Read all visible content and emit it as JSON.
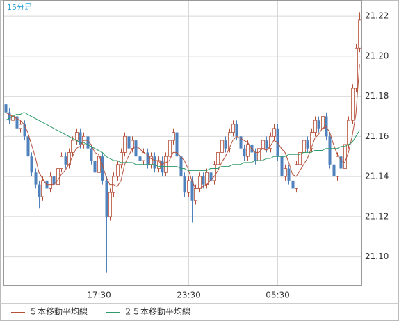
{
  "chart_data": {
    "type": "candlestick",
    "title": "15分足",
    "categories": [
      null,
      null,
      null,
      null,
      null,
      null,
      null,
      null,
      null,
      null,
      null,
      null,
      null,
      null,
      null,
      null,
      null,
      null,
      null,
      null,
      null,
      null,
      null,
      null,
      null,
      "17:30",
      null,
      null,
      null,
      null,
      null,
      null,
      null,
      null,
      null,
      null,
      null,
      null,
      null,
      null,
      null,
      null,
      null,
      null,
      null,
      null,
      null,
      null,
      null,
      "23:30",
      null,
      null,
      null,
      null,
      null,
      null,
      null,
      null,
      null,
      null,
      null,
      null,
      null,
      null,
      null,
      null,
      null,
      null,
      null,
      null,
      null,
      null,
      null,
      "05:30",
      null,
      null,
      null,
      null,
      null,
      null,
      null,
      null,
      null,
      null,
      null,
      null,
      null,
      null,
      null,
      null,
      null,
      null,
      null,
      null,
      null,
      null
    ],
    "open": [
      21.176,
      21.172,
      21.168,
      21.17,
      21.164,
      21.166,
      21.16,
      21.15,
      21.142,
      21.136,
      21.13,
      21.138,
      21.134,
      21.14,
      21.136,
      21.144,
      21.15,
      21.146,
      21.152,
      21.158,
      21.162,
      21.156,
      21.16,
      21.154,
      21.148,
      21.142,
      21.15,
      21.138,
      21.12,
      21.132,
      21.14,
      21.146,
      21.152,
      21.16,
      21.154,
      21.158,
      21.15,
      21.148,
      21.152,
      21.146,
      21.15,
      21.144,
      21.148,
      21.142,
      21.15,
      21.158,
      21.162,
      21.15,
      21.14,
      21.132,
      21.138,
      21.128,
      21.134,
      21.14,
      21.136,
      21.142,
      21.138,
      21.146,
      21.152,
      21.158,
      21.154,
      21.162,
      21.166,
      21.16,
      21.154,
      21.15,
      21.156,
      21.152,
      21.148,
      21.154,
      21.158,
      21.154,
      21.16,
      21.164,
      21.15,
      21.14,
      21.144,
      21.138,
      21.134,
      21.146,
      21.152,
      21.158,
      21.154,
      21.162,
      21.168,
      21.164,
      21.17,
      21.16,
      21.146,
      21.14,
      21.15,
      21.144,
      21.156,
      21.168,
      21.184,
      21.204
    ],
    "high": [
      21.178,
      21.174,
      21.172,
      21.172,
      21.168,
      21.168,
      21.162,
      21.152,
      21.144,
      21.138,
      21.14,
      21.14,
      21.142,
      21.142,
      21.146,
      21.152,
      21.152,
      21.154,
      21.16,
      21.164,
      21.164,
      21.162,
      21.162,
      21.156,
      21.15,
      21.152,
      21.152,
      21.14,
      21.134,
      21.142,
      21.148,
      21.154,
      21.162,
      21.162,
      21.16,
      21.16,
      21.152,
      21.154,
      21.154,
      21.152,
      21.152,
      21.15,
      21.15,
      21.152,
      21.16,
      21.164,
      21.164,
      21.152,
      21.142,
      21.14,
      21.14,
      21.136,
      21.142,
      21.142,
      21.144,
      21.144,
      21.148,
      21.154,
      21.16,
      21.16,
      21.164,
      21.168,
      21.168,
      21.162,
      21.156,
      21.158,
      21.158,
      21.154,
      21.156,
      21.16,
      21.16,
      21.162,
      21.166,
      21.166,
      21.152,
      21.146,
      21.146,
      21.14,
      21.148,
      21.154,
      21.16,
      21.16,
      21.164,
      21.17,
      21.17,
      21.172,
      21.172,
      21.162,
      21.148,
      21.152,
      21.152,
      21.158,
      21.17,
      21.186,
      21.206,
      21.222
    ],
    "low": [
      21.17,
      21.166,
      21.166,
      21.162,
      21.162,
      21.158,
      21.148,
      21.14,
      21.134,
      21.124,
      21.128,
      21.132,
      21.132,
      21.134,
      21.134,
      21.142,
      21.144,
      21.144,
      21.15,
      21.156,
      21.154,
      21.154,
      21.152,
      21.146,
      21.14,
      21.14,
      21.136,
      21.092,
      21.118,
      21.13,
      21.138,
      21.144,
      21.15,
      21.152,
      21.152,
      21.148,
      21.146,
      21.146,
      21.144,
      21.144,
      21.142,
      21.142,
      21.14,
      21.14,
      21.148,
      21.156,
      21.148,
      21.138,
      21.13,
      21.13,
      21.117,
      21.126,
      21.132,
      21.134,
      21.134,
      21.136,
      21.136,
      21.144,
      21.15,
      21.152,
      21.152,
      21.16,
      21.158,
      21.152,
      21.148,
      21.148,
      21.15,
      21.146,
      21.146,
      21.152,
      21.152,
      21.152,
      21.158,
      21.148,
      21.138,
      21.138,
      21.136,
      21.132,
      21.132,
      21.144,
      21.15,
      21.152,
      21.152,
      21.16,
      21.162,
      21.162,
      21.158,
      21.144,
      21.138,
      21.138,
      21.127,
      21.142,
      21.154,
      21.166,
      21.182,
      21.202
    ],
    "close": [
      21.172,
      21.168,
      21.17,
      21.164,
      21.166,
      21.16,
      21.15,
      21.142,
      21.136,
      21.13,
      21.138,
      21.134,
      21.14,
      21.136,
      21.144,
      21.15,
      21.146,
      21.152,
      21.158,
      21.162,
      21.156,
      21.16,
      21.154,
      21.148,
      21.142,
      21.15,
      21.138,
      21.12,
      21.132,
      21.14,
      21.146,
      21.152,
      21.16,
      21.154,
      21.158,
      21.15,
      21.148,
      21.152,
      21.146,
      21.15,
      21.144,
      21.148,
      21.142,
      21.15,
      21.158,
      21.162,
      21.15,
      21.14,
      21.132,
      21.138,
      21.128,
      21.134,
      21.14,
      21.136,
      21.142,
      21.138,
      21.146,
      21.152,
      21.158,
      21.154,
      21.162,
      21.166,
      21.16,
      21.154,
      21.15,
      21.156,
      21.152,
      21.148,
      21.154,
      21.158,
      21.154,
      21.16,
      21.164,
      21.15,
      21.14,
      21.144,
      21.138,
      21.134,
      21.146,
      21.152,
      21.158,
      21.154,
      21.162,
      21.168,
      21.164,
      21.17,
      21.16,
      21.146,
      21.14,
      21.15,
      21.144,
      21.156,
      21.168,
      21.184,
      21.204,
      21.218
    ],
    "series": [
      {
        "name": "５本移動平均線",
        "color": "#b5503a",
        "values": [
          21.172,
          21.171,
          21.17,
          21.169,
          21.168,
          21.166,
          21.162,
          21.156,
          21.15,
          21.142,
          21.139,
          21.136,
          21.136,
          21.136,
          21.138,
          21.141,
          21.143,
          21.146,
          21.15,
          21.154,
          21.155,
          21.158,
          21.158,
          21.156,
          21.152,
          21.151,
          21.146,
          21.14,
          21.136,
          21.136,
          21.135,
          21.138,
          21.146,
          21.15,
          21.154,
          21.155,
          21.154,
          21.152,
          21.151,
          21.149,
          21.148,
          21.148,
          21.146,
          21.147,
          21.148,
          21.152,
          21.152,
          21.15,
          21.148,
          21.144,
          21.138,
          21.134,
          21.134,
          21.135,
          21.136,
          21.138,
          21.14,
          21.143,
          21.147,
          21.15,
          21.154,
          21.158,
          21.16,
          21.159,
          21.158,
          21.157,
          21.154,
          21.152,
          21.152,
          21.154,
          21.153,
          21.155,
          21.158,
          21.157,
          21.154,
          21.152,
          21.147,
          21.141,
          21.14,
          21.143,
          21.146,
          21.149,
          21.154,
          21.159,
          21.161,
          21.164,
          21.165,
          21.162,
          21.156,
          21.151,
          21.148,
          21.147,
          21.152,
          21.16,
          21.171,
          21.196
        ]
      },
      {
        "name": "２５本移動平均線",
        "color": "#2e9c6a",
        "values": [
          21.168,
          21.169,
          21.17,
          21.171,
          21.171,
          21.172,
          21.171,
          21.17,
          21.169,
          21.168,
          21.167,
          21.166,
          21.165,
          21.164,
          21.163,
          21.162,
          21.161,
          21.16,
          21.159,
          21.158,
          21.157,
          21.157,
          21.156,
          21.155,
          21.154,
          21.153,
          21.152,
          21.15,
          21.149,
          21.148,
          21.148,
          21.147,
          21.147,
          21.147,
          21.147,
          21.146,
          21.146,
          21.146,
          21.146,
          21.146,
          21.146,
          21.145,
          21.145,
          21.145,
          21.145,
          21.145,
          21.145,
          21.144,
          21.144,
          21.143,
          21.143,
          21.143,
          21.143,
          21.143,
          21.143,
          21.144,
          21.144,
          21.144,
          21.145,
          21.145,
          21.145,
          21.146,
          21.146,
          21.146,
          21.147,
          21.147,
          21.147,
          21.148,
          21.148,
          21.148,
          21.149,
          21.149,
          21.15,
          21.15,
          21.15,
          21.15,
          21.151,
          21.151,
          21.151,
          21.151,
          21.152,
          21.152,
          21.152,
          21.153,
          21.153,
          21.153,
          21.154,
          21.154,
          21.154,
          21.154,
          21.155,
          21.155,
          21.156,
          21.157,
          21.16,
          21.163
        ]
      }
    ],
    "up_color": "#b5503a",
    "down_color": "#4f81bd",
    "ylim": [
      21.086,
      21.228
    ],
    "yticks": [
      {
        "value": 21.1,
        "label": "21.10"
      },
      21.12,
      21.14,
      21.16,
      21.18,
      {
        "value": 21.2,
        "label": "21.20"
      },
      21.22
    ],
    "grid": true
  }
}
